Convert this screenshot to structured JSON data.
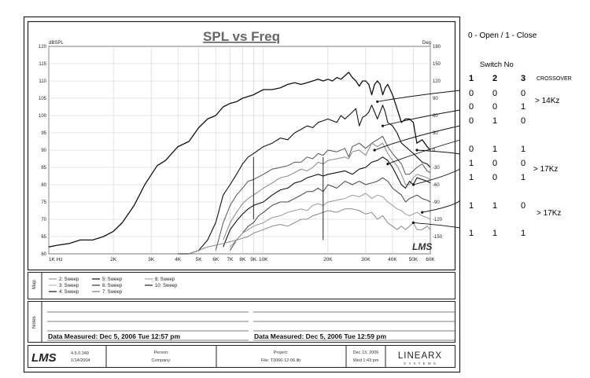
{
  "chart_data": {
    "type": "line",
    "title": "SPL vs Freq",
    "ylabel_left": "dBSPL",
    "ylabel_right": "Deg",
    "xlim": [
      1000,
      60000
    ],
    "ylim": [
      60,
      120
    ],
    "ylim_right": [
      -180,
      180
    ],
    "x_scale": "log",
    "grid": true,
    "x_tick_labels": [
      {
        "v": 1000,
        "t": "1K Hz"
      },
      {
        "v": 2000,
        "t": "2K"
      },
      {
        "v": 3000,
        "t": "3K"
      },
      {
        "v": 4000,
        "t": "4K"
      },
      {
        "v": 5000,
        "t": "5K"
      },
      {
        "v": 6000,
        "t": "6K"
      },
      {
        "v": 7000,
        "t": "7K"
      },
      {
        "v": 8000,
        "t": "8K"
      },
      {
        "v": 9000,
        "t": "9K"
      },
      {
        "v": 10000,
        "t": "10K"
      },
      {
        "v": 20000,
        "t": "20K"
      },
      {
        "v": 30000,
        "t": "30K"
      },
      {
        "v": 40000,
        "t": "40K"
      },
      {
        "v": 50000,
        "t": "50K"
      },
      {
        "v": 60000,
        "t": "60K"
      }
    ],
    "y_ticks_left": [
      60,
      65,
      70,
      75,
      80,
      85,
      90,
      95,
      100,
      105,
      110,
      115,
      120
    ],
    "y_ticks_right": [
      -150,
      -120,
      -90,
      -60,
      -30,
      0,
      30,
      60,
      90,
      120,
      150,
      180
    ],
    "series": [
      {
        "name": "4: Sweep",
        "color": "#111111",
        "width": 1.3,
        "x": [
          1000,
          1100,
          1250,
          1400,
          1600,
          1800,
          2000,
          2200,
          2500,
          2800,
          3200,
          3500,
          4000,
          4500,
          5000,
          5500,
          6000,
          6500,
          7000,
          7500,
          8000,
          8500,
          9000,
          10000,
          11000,
          12000,
          13000,
          14000,
          15000,
          16000,
          17000,
          18000,
          19000,
          20000,
          21000,
          22000,
          23000,
          24000,
          25000,
          26000,
          27000,
          28000,
          29000,
          30000,
          31000,
          32000,
          33000,
          34000,
          35000,
          36000,
          37000,
          38000,
          40000,
          42000,
          44000,
          46000,
          48000,
          50000,
          52000,
          55000,
          58000,
          60000
        ],
        "y": [
          62,
          62.5,
          63,
          64,
          64,
          65,
          66.5,
          69,
          74,
          80,
          85.5,
          87,
          91,
          92.5,
          96.5,
          99,
          100,
          102.5,
          103.5,
          104,
          105,
          105.5,
          106,
          107.5,
          107.5,
          108,
          109,
          109.5,
          109,
          109.5,
          110,
          110.5,
          110,
          110.5,
          110,
          111,
          110.5,
          111.5,
          112.5,
          111,
          110,
          108.5,
          110,
          110,
          109,
          106,
          109,
          110,
          109,
          106,
          108,
          109,
          106,
          102,
          98,
          99,
          99,
          98,
          92,
          93,
          91,
          90
        ]
      },
      {
        "name": "5: Sweep",
        "color": "#111111",
        "width": 1.1,
        "x": [
          4000,
          4500,
          5000,
          5500,
          6000,
          6500,
          7000,
          7500,
          8000,
          8500,
          9000,
          10000,
          11000,
          12000,
          13000,
          14000,
          15000,
          16000,
          17000,
          18000,
          19000,
          20000,
          21000,
          22000,
          23000,
          24000,
          25000,
          26000,
          27000,
          28000,
          29000,
          30000,
          31000,
          32000,
          33000,
          34000,
          35000,
          36000,
          37000,
          38000,
          40000,
          42000,
          44000,
          46000,
          48000,
          50000,
          52000,
          55000,
          58000,
          60000
        ],
        "y": [
          60,
          60,
          61,
          64,
          69,
          77,
          80,
          83,
          86,
          88,
          89,
          91,
          92,
          93.5,
          93,
          95,
          96,
          97,
          96.5,
          98,
          98.5,
          99,
          98.5,
          98,
          100,
          99,
          100,
          101,
          102,
          97,
          99.5,
          100,
          101,
          103,
          101,
          99,
          101,
          103,
          101,
          98,
          97,
          95,
          92,
          91,
          90,
          89,
          88,
          86.5,
          86,
          85
        ]
      },
      {
        "name": "6: Sweep",
        "color": "#555555",
        "width": 1.0,
        "x": [
          6000,
          6500,
          7000,
          7500,
          8000,
          8500,
          9000,
          10000,
          11000,
          12000,
          13000,
          14000,
          15000,
          16000,
          17000,
          18000,
          19000,
          20000,
          22000,
          24000,
          25000,
          26000,
          28000,
          30000,
          32000,
          34000,
          36000,
          38000,
          40000,
          42000,
          44000,
          46000,
          48000,
          50000,
          52000,
          55000,
          58000,
          60000
        ],
        "y": [
          61,
          69,
          74,
          77,
          79,
          81,
          81.5,
          83,
          84.5,
          85,
          85.5,
          86.5,
          86.5,
          88,
          87.5,
          89,
          88.5,
          90,
          89.5,
          90.5,
          88,
          91,
          92,
          90.5,
          92,
          93,
          94,
          91,
          89,
          87.5,
          86,
          83,
          83,
          84,
          85,
          86,
          84,
          83.5
        ]
      },
      {
        "name": "2: Sweep",
        "color": "#888888",
        "width": 1.0,
        "x": [
          6500,
          7000,
          7500,
          8000,
          8500,
          9000,
          10000,
          11000,
          12000,
          13000,
          14000,
          15000,
          16000,
          17000,
          18000,
          19000,
          20000,
          22000,
          24000,
          25000,
          26000,
          28000,
          30000,
          32000,
          34000,
          36000,
          38000,
          40000,
          42000,
          44000,
          46000,
          48000,
          50000,
          52000,
          55000,
          58000,
          60000
        ],
        "y": [
          64,
          69,
          72,
          74.5,
          76,
          77,
          79,
          80.5,
          82,
          82.5,
          83.5,
          84.5,
          84,
          85,
          86.5,
          86,
          87,
          87.5,
          88,
          87.5,
          89.5,
          90,
          88.5,
          92,
          91,
          92,
          89,
          87,
          85.5,
          83,
          80,
          80,
          82,
          83,
          82.5,
          82,
          81.5
        ]
      },
      {
        "name": "7: Sweep",
        "color": "#111111",
        "width": 1.1,
        "x": [
          6500,
          7000,
          7500,
          8000,
          8500,
          9000,
          10000,
          11000,
          12000,
          13000,
          14000,
          15000,
          16000,
          17000,
          18000,
          19000,
          20000,
          22000,
          24000,
          26000,
          28000,
          30000,
          32000,
          34000,
          36000,
          38000,
          40000,
          42000,
          44000,
          46000,
          48000,
          50000,
          52000,
          55000,
          58000,
          60000
        ],
        "y": [
          62,
          67,
          69.5,
          71.5,
          73,
          74,
          75,
          77,
          78.5,
          79,
          80.5,
          81,
          82,
          82.5,
          83,
          82.5,
          83,
          83.5,
          84,
          83,
          84.5,
          85,
          86.5,
          87,
          88,
          87,
          85,
          82.5,
          80,
          79,
          81,
          80,
          82,
          81.5,
          81,
          80.5
        ]
      },
      {
        "name": "8: Sweep",
        "color": "#444444",
        "width": 1.0,
        "x": [
          7000,
          7500,
          8000,
          8500,
          9000,
          9500,
          10000,
          11000,
          12000,
          13000,
          14000,
          15000,
          16000,
          17000,
          18000,
          19000,
          20000,
          22000,
          24000,
          26000,
          28000,
          30000,
          32000,
          34000,
          36000,
          38000,
          40000,
          42000,
          44000,
          46000,
          48000,
          50000,
          52000,
          55000,
          58000,
          60000
        ],
        "y": [
          61,
          64,
          66,
          68,
          69,
          71,
          72,
          74,
          75,
          75,
          76,
          77,
          78,
          78,
          79,
          78,
          80,
          79,
          81,
          80,
          81,
          80,
          80.5,
          81,
          82,
          81,
          79,
          78,
          77,
          75,
          76,
          76.5,
          77,
          76,
          75.5,
          75
        ]
      },
      {
        "name": "3: Sweep",
        "color": "#999999",
        "width": 1.0,
        "x": [
          7000,
          7500,
          8000,
          8500,
          9000,
          10000,
          11000,
          12000,
          13000,
          14000,
          15000,
          16000,
          17000,
          18000,
          19000,
          20000,
          22000,
          24000,
          26000,
          28000,
          30000,
          32000,
          34000,
          36000,
          38000,
          40000,
          42000,
          44000,
          46000,
          48000,
          50000,
          52000,
          55000,
          58000,
          60000
        ],
        "y": [
          62,
          64,
          66,
          67,
          68,
          69,
          70.5,
          71,
          72,
          72.5,
          73,
          72.5,
          74,
          74.5,
          74,
          75,
          75.5,
          76,
          77,
          76.5,
          77.5,
          76,
          77,
          76.5,
          75,
          74,
          73,
          72.5,
          71.5,
          71,
          71.5,
          72,
          71,
          70.5,
          70
        ]
      },
      {
        "name": "10: Sweep",
        "color": "#888888",
        "width": 1.0,
        "x": [
          4500,
          5000,
          5500,
          6000,
          6500,
          7000,
          7500,
          8000,
          8500,
          9000,
          10000,
          11000,
          12000,
          13000,
          14000,
          15000,
          16000,
          17000,
          18000,
          19000,
          20000,
          22000,
          24000,
          26000,
          28000,
          30000,
          32000,
          34000,
          36000,
          38000,
          40000,
          42000,
          44000,
          46000,
          48000,
          50000,
          52000,
          55000,
          58000,
          60000
        ],
        "y": [
          60,
          61,
          62,
          62.5,
          63,
          63.5,
          64,
          64.5,
          65,
          66,
          67,
          68,
          68.5,
          68,
          69,
          70,
          70,
          71,
          71.5,
          72,
          72.5,
          72,
          73,
          73,
          72.5,
          71.5,
          72,
          70,
          71,
          69,
          68,
          67,
          68,
          67,
          68,
          69,
          67,
          67,
          68,
          67
        ]
      }
    ]
  },
  "legend": {
    "section_label": "Map",
    "entries": [
      {
        "label": "2: Sweep",
        "color": "#999999"
      },
      {
        "label": "3: Sweep",
        "color": "#bbbbbb"
      },
      {
        "label": "4: Sweep",
        "color": "#111111"
      },
      {
        "label": "5: Sweep",
        "color": "#111111"
      },
      {
        "label": "6: Sweep",
        "color": "#333333"
      },
      {
        "label": "7: Sweep",
        "color": "#777777"
      },
      {
        "label": "8: Sweep",
        "color": "#aaaaaa"
      },
      {
        "label": "10: Sweep",
        "color": "#222222"
      }
    ]
  },
  "notes": {
    "section_label": "Notes",
    "measured_left": "Data Measured: Dec  5, 2006  Tue 12:57 pm",
    "measured_right": "Data Measured: Dec  5, 2006  Tue 12:59 pm"
  },
  "footer": {
    "logo": "LMS",
    "version": "4.5.0.349",
    "version_date": "1/14/2004",
    "person_label": "Person:",
    "company_label": "Company:",
    "project_label": "Project:",
    "project_file": "File: T3066-12-06.lib",
    "date": "Dec 13, 2006",
    "day_time": "Wed  1:43 pm",
    "brand": "LINEARX",
    "brand_sub": "S Y S T E M S"
  },
  "watermark": "LMS",
  "side_annotations": {
    "legend_text": "0 - Open / 1 - Close",
    "switch_no": "Switch No",
    "col_headers": [
      "1",
      "2",
      "3"
    ],
    "crossover": "CROSSOVER",
    "rows": [
      {
        "values": [
          "0",
          "0",
          "0"
        ]
      },
      {
        "values": [
          "0",
          "0",
          "1"
        ]
      },
      {
        "values": [
          "0",
          "1",
          "0"
        ]
      },
      {
        "values": [
          "0",
          "1",
          "1"
        ]
      },
      {
        "values": [
          "1",
          "0",
          "0"
        ]
      },
      {
        "values": [
          "1",
          "0",
          "1"
        ]
      },
      {
        "values": [
          "1",
          "1",
          "0"
        ]
      },
      {
        "values": [
          "1",
          "1",
          "1"
        ]
      }
    ],
    "groups": [
      {
        "label": "> 14Kz"
      },
      {
        "label": ">  17Kz"
      },
      {
        "label": ">  17Kz"
      }
    ]
  }
}
